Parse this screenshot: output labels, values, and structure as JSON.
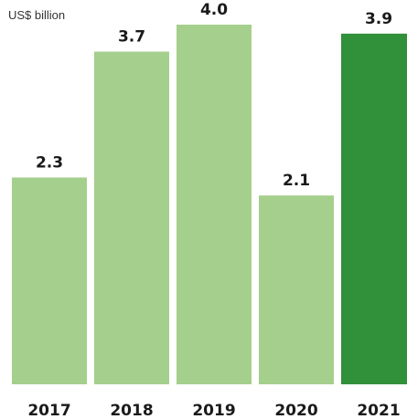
{
  "unit_label": "US$ billion",
  "colors": {
    "bar": "#a5cf8c",
    "bar_highlight": "#31903a",
    "text": "#1a1a1a"
  },
  "chart_data": {
    "type": "bar",
    "categories": [
      "2017",
      "2018",
      "2019",
      "2020",
      "2021"
    ],
    "values": [
      2.3,
      3.7,
      4.0,
      2.1,
      3.9
    ],
    "value_labels": [
      "2.3",
      "3.7",
      "4.0",
      "2.1",
      "3.9"
    ],
    "highlight_category": "2021",
    "ylabel": "US$ billion",
    "ylim": [
      0,
      4.0
    ],
    "grid": false,
    "legend": false
  }
}
